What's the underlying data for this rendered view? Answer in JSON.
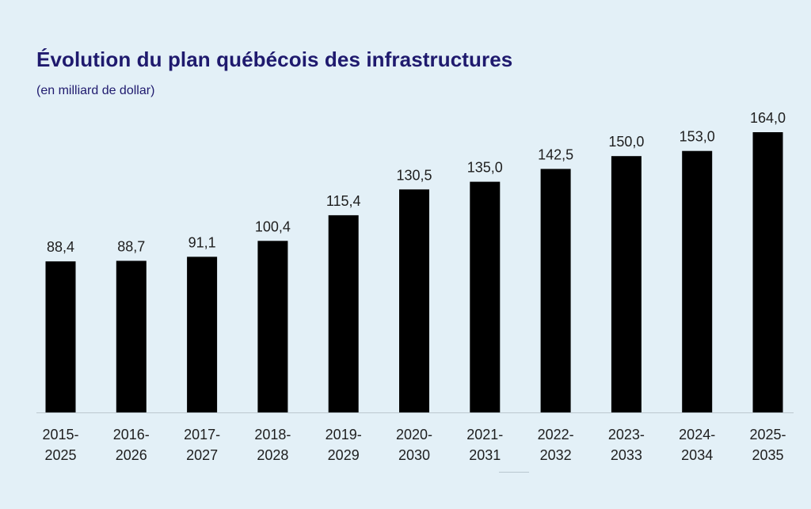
{
  "chart_data": {
    "type": "bar",
    "title": "Évolution du plan québécois des infrastructures",
    "subtitle": "(en milliard de dollar)",
    "categories": [
      [
        "2015-",
        "2025"
      ],
      [
        "2016-",
        "2026"
      ],
      [
        "2017-",
        "2027"
      ],
      [
        "2018-",
        "2028"
      ],
      [
        "2019-",
        "2029"
      ],
      [
        "2020-",
        "2030"
      ],
      [
        "2021-",
        "2031"
      ],
      [
        "2022-",
        "2032"
      ],
      [
        "2023-",
        "2033"
      ],
      [
        "2024-",
        "2034"
      ],
      [
        "2025-",
        "2035"
      ]
    ],
    "values": [
      88.4,
      88.7,
      91.1,
      100.4,
      115.4,
      130.5,
      135.0,
      142.5,
      150.0,
      153.0,
      164.0
    ],
    "value_labels": [
      "88,4",
      "88,7",
      "91,1",
      "100,4",
      "115,4",
      "130,5",
      "135,0",
      "142,5",
      "150,0",
      "153,0",
      "164,0"
    ],
    "ylim": [
      0,
      164
    ],
    "grid": false,
    "bar_color": "#000000",
    "baseline_color": "#bcc8cf"
  }
}
